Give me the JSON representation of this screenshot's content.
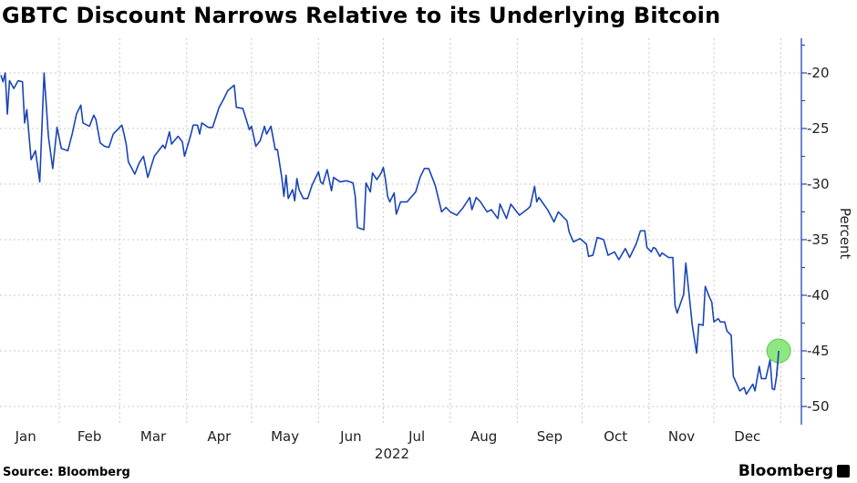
{
  "chart_data": {
    "type": "line",
    "title": "GBTC Discount Narrows Relative to its Underlying Bitcoin",
    "ylabel": "Percent",
    "xlabel": "2022",
    "x_tick_labels": [
      "Jan",
      "Feb",
      "Mar",
      "Apr",
      "May",
      "Jun",
      "Jul",
      "Aug",
      "Sep",
      "Oct",
      "Nov",
      "Dec"
    ],
    "y_ticks": [
      -20,
      -25,
      -30,
      -35,
      -40,
      -45,
      -50
    ],
    "ylim": [
      -51.5,
      -17
    ],
    "y_axis_position": "right",
    "grid": true,
    "line_color": "#1a45b5",
    "highlight_color": "#7be36b",
    "highlight": "last point",
    "points": [
      [
        "2022-01-05",
        -20.2
      ],
      [
        "2022-01-06",
        -20.8
      ],
      [
        "2022-01-07",
        -20.0
      ],
      [
        "2022-01-08",
        -23.7
      ],
      [
        "2022-01-09",
        -20.7
      ],
      [
        "2022-01-11",
        -21.4
      ],
      [
        "2022-01-13",
        -20.7
      ],
      [
        "2022-01-15",
        -20.8
      ],
      [
        "2022-01-16",
        -24.5
      ],
      [
        "2022-01-17",
        -23.3
      ],
      [
        "2022-01-19",
        -27.8
      ],
      [
        "2022-01-21",
        -27.0
      ],
      [
        "2022-01-23",
        -29.8
      ],
      [
        "2022-01-25",
        -20.0
      ],
      [
        "2022-01-27",
        -25.7
      ],
      [
        "2022-01-29",
        -28.6
      ],
      [
        "2022-01-31",
        -24.9
      ],
      [
        "2022-02-02",
        -26.8
      ],
      [
        "2022-02-05",
        -27.0
      ],
      [
        "2022-02-07",
        -25.5
      ],
      [
        "2022-02-09",
        -23.7
      ],
      [
        "2022-02-11",
        -22.9
      ],
      [
        "2022-02-12",
        -24.5
      ],
      [
        "2022-02-15",
        -24.8
      ],
      [
        "2022-02-17",
        -23.8
      ],
      [
        "2022-02-18",
        -24.2
      ],
      [
        "2022-02-20",
        -26.3
      ],
      [
        "2022-02-22",
        -26.6
      ],
      [
        "2022-02-24",
        -26.7
      ],
      [
        "2022-02-26",
        -25.5
      ],
      [
        "2022-03-02",
        -24.7
      ],
      [
        "2022-03-03",
        -25.5
      ],
      [
        "2022-03-04",
        -26.4
      ],
      [
        "2022-03-05",
        -28.0
      ],
      [
        "2022-03-08",
        -29.1
      ],
      [
        "2022-03-10",
        -28.1
      ],
      [
        "2022-03-12",
        -27.5
      ],
      [
        "2022-03-14",
        -29.4
      ],
      [
        "2022-03-17",
        -27.5
      ],
      [
        "2022-03-21",
        -26.5
      ],
      [
        "2022-03-22",
        -26.8
      ],
      [
        "2022-03-24",
        -25.3
      ],
      [
        "2022-03-25",
        -26.4
      ],
      [
        "2022-03-28",
        -25.7
      ],
      [
        "2022-03-30",
        -26.2
      ],
      [
        "2022-03-31",
        -27.5
      ],
      [
        "2022-04-03",
        -25.5
      ],
      [
        "2022-04-04",
        -24.7
      ],
      [
        "2022-04-06",
        -24.7
      ],
      [
        "2022-04-07",
        -25.5
      ],
      [
        "2022-04-08",
        -24.5
      ],
      [
        "2022-04-11",
        -24.9
      ],
      [
        "2022-04-13",
        -24.9
      ],
      [
        "2022-04-16",
        -23.1
      ],
      [
        "2022-04-18",
        -22.4
      ],
      [
        "2022-04-20",
        -21.6
      ],
      [
        "2022-04-23",
        -21.1
      ],
      [
        "2022-04-24",
        -23.1
      ],
      [
        "2022-04-27",
        -23.2
      ],
      [
        "2022-04-30",
        -25.1
      ],
      [
        "2022-05-01",
        -24.8
      ],
      [
        "2022-05-03",
        -26.6
      ],
      [
        "2022-05-05",
        -26.1
      ],
      [
        "2022-05-07",
        -24.8
      ],
      [
        "2022-05-08",
        -25.5
      ],
      [
        "2022-05-10",
        -24.8
      ],
      [
        "2022-05-12",
        -26.9
      ],
      [
        "2022-05-13",
        -26.9
      ],
      [
        "2022-05-15",
        -29.4
      ],
      [
        "2022-05-16",
        -31.1
      ],
      [
        "2022-05-17",
        -29.2
      ],
      [
        "2022-05-18",
        -31.3
      ],
      [
        "2022-05-20",
        -30.5
      ],
      [
        "2022-05-21",
        -31.5
      ],
      [
        "2022-05-22",
        -29.5
      ],
      [
        "2022-05-23",
        -30.5
      ],
      [
        "2022-05-25",
        -31.3
      ],
      [
        "2022-05-27",
        -31.3
      ],
      [
        "2022-05-29",
        -30.1
      ],
      [
        "2022-06-01",
        -28.9
      ],
      [
        "2022-06-02",
        -29.8
      ],
      [
        "2022-06-03",
        -30.0
      ],
      [
        "2022-06-05",
        -28.7
      ],
      [
        "2022-06-07",
        -30.6
      ],
      [
        "2022-06-08",
        -29.4
      ],
      [
        "2022-06-11",
        -29.8
      ],
      [
        "2022-06-14",
        -29.7
      ],
      [
        "2022-06-17",
        -29.9
      ],
      [
        "2022-06-18",
        -31.1
      ],
      [
        "2022-06-19",
        -33.9
      ],
      [
        "2022-06-22",
        -34.1
      ],
      [
        "2022-06-23",
        -29.9
      ],
      [
        "2022-06-25",
        -30.7
      ],
      [
        "2022-06-26",
        -29.0
      ],
      [
        "2022-06-28",
        -29.6
      ],
      [
        "2022-06-30",
        -29.0
      ],
      [
        "2022-07-01",
        -28.5
      ],
      [
        "2022-07-02",
        -29.6
      ],
      [
        "2022-07-03",
        -31.1
      ],
      [
        "2022-07-04",
        -31.6
      ],
      [
        "2022-07-06",
        -30.8
      ],
      [
        "2022-07-07",
        -32.7
      ],
      [
        "2022-07-09",
        -31.6
      ],
      [
        "2022-07-12",
        -31.6
      ],
      [
        "2022-07-16",
        -30.7
      ],
      [
        "2022-07-18",
        -29.4
      ],
      [
        "2022-07-20",
        -28.6
      ],
      [
        "2022-07-22",
        -28.6
      ],
      [
        "2022-07-25",
        -30.1
      ],
      [
        "2022-07-26",
        -30.9
      ],
      [
        "2022-07-28",
        -32.5
      ],
      [
        "2022-07-30",
        -32.1
      ],
      [
        "2022-08-01",
        -32.5
      ],
      [
        "2022-08-04",
        -32.8
      ],
      [
        "2022-08-07",
        -32.1
      ],
      [
        "2022-08-10",
        -31.2
      ],
      [
        "2022-08-11",
        -32.3
      ],
      [
        "2022-08-13",
        -31.2
      ],
      [
        "2022-08-15",
        -31.6
      ],
      [
        "2022-08-18",
        -32.5
      ],
      [
        "2022-08-20",
        -32.3
      ],
      [
        "2022-08-23",
        -33.1
      ],
      [
        "2022-08-24",
        -31.8
      ],
      [
        "2022-08-27",
        -33.1
      ],
      [
        "2022-08-29",
        -31.8
      ],
      [
        "2022-09-02",
        -32.8
      ],
      [
        "2022-09-06",
        -32.2
      ],
      [
        "2022-09-07",
        -32.0
      ],
      [
        "2022-09-09",
        -30.2
      ],
      [
        "2022-09-10",
        -31.6
      ],
      [
        "2022-09-11",
        -31.2
      ],
      [
        "2022-09-15",
        -32.3
      ],
      [
        "2022-09-18",
        -33.4
      ],
      [
        "2022-09-20",
        -32.5
      ],
      [
        "2022-09-24",
        -33.3
      ],
      [
        "2022-09-25",
        -34.3
      ],
      [
        "2022-09-27",
        -35.2
      ],
      [
        "2022-09-30",
        -34.9
      ],
      [
        "2022-10-03",
        -35.4
      ],
      [
        "2022-10-04",
        -36.5
      ],
      [
        "2022-10-06",
        -36.4
      ],
      [
        "2022-10-08",
        -34.8
      ],
      [
        "2022-10-11",
        -35.0
      ],
      [
        "2022-10-13",
        -36.4
      ],
      [
        "2022-10-16",
        -36.1
      ],
      [
        "2022-10-18",
        -36.8
      ],
      [
        "2022-10-21",
        -35.8
      ],
      [
        "2022-10-23",
        -36.6
      ],
      [
        "2022-10-26",
        -35.4
      ],
      [
        "2022-10-28",
        -34.2
      ],
      [
        "2022-10-30",
        -34.2
      ],
      [
        "2022-10-31",
        -35.7
      ],
      [
        "2022-11-02",
        -36.1
      ],
      [
        "2022-11-03",
        -35.7
      ],
      [
        "2022-11-04",
        -35.8
      ],
      [
        "2022-11-06",
        -36.5
      ],
      [
        "2022-11-07",
        -36.2
      ],
      [
        "2022-11-10",
        -36.6
      ],
      [
        "2022-11-12",
        -36.6
      ],
      [
        "2022-11-13",
        -40.9
      ],
      [
        "2022-11-14",
        -41.6
      ],
      [
        "2022-11-17",
        -39.9
      ],
      [
        "2022-11-18",
        -37.1
      ],
      [
        "2022-11-21",
        -42.7
      ],
      [
        "2022-11-23",
        -45.2
      ],
      [
        "2022-11-24",
        -42.6
      ],
      [
        "2022-11-26",
        -42.7
      ],
      [
        "2022-11-27",
        -39.2
      ],
      [
        "2022-11-29",
        -40.2
      ],
      [
        "2022-11-30",
        -40.6
      ],
      [
        "2022-12-01",
        -42.4
      ],
      [
        "2022-12-03",
        -42.1
      ],
      [
        "2022-12-04",
        -42.4
      ],
      [
        "2022-12-06",
        -42.4
      ],
      [
        "2022-12-07",
        -43.2
      ],
      [
        "2022-12-09",
        -43.6
      ],
      [
        "2022-12-10",
        -47.3
      ],
      [
        "2022-12-13",
        -48.6
      ],
      [
        "2022-12-15",
        -48.3
      ],
      [
        "2022-12-16",
        -48.9
      ],
      [
        "2022-12-19",
        -48.0
      ],
      [
        "2022-12-20",
        -48.6
      ],
      [
        "2022-12-22",
        -46.4
      ],
      [
        "2022-12-23",
        -47.5
      ],
      [
        "2022-12-25",
        -47.5
      ],
      [
        "2022-12-27",
        -45.8
      ],
      [
        "2022-12-28",
        -48.4
      ],
      [
        "2022-12-29",
        -48.5
      ],
      [
        "2022-12-30",
        -47.3
      ],
      [
        "2022-12-31",
        -45.0
      ]
    ]
  },
  "footer": {
    "source": "Source: Bloomberg",
    "brand": "Bloomberg"
  }
}
